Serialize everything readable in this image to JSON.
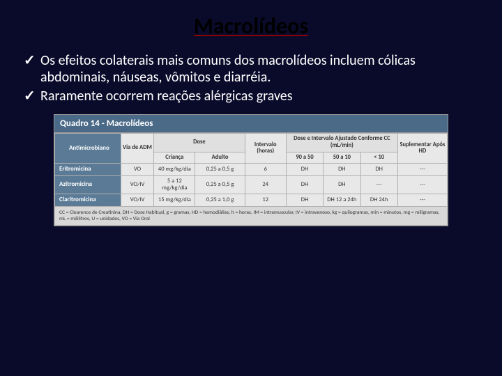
{
  "title": "Macrolídeos",
  "bullets": [
    "Os efeitos colaterais mais comuns dos macrolídeos incluem cólicas abdominais, náuseas, vômitos e diarréia.",
    "Raramente ocorrem reações alérgicas graves"
  ],
  "table": {
    "caption": "Quadro 14 - Macrolídeos",
    "headers": {
      "antimicrobiano": "Antimicrobiano",
      "via_adm": "Via de ADM",
      "dose": "Dose",
      "dose_crianca": "Criança",
      "dose_adulto": "Adulto",
      "intervalo": "Intervalo (horas)",
      "dose_ajust": "Dose e Intervalo Ajustado Conforme CC (mL/min)",
      "cc1": "90 a 50",
      "cc2": "50 a 10",
      "cc3": "< 10",
      "suplementar": "Suplementar Após HD"
    },
    "rows": [
      {
        "name": "Eritromicina",
        "via": "VO",
        "crianca": "40 mg/kg/dia",
        "adulto": "0,25 a 0,5 g",
        "intervalo": "6",
        "cc1": "DH",
        "cc2": "DH",
        "cc3": "DH",
        "hd": "---"
      },
      {
        "name": "Azitromicina",
        "via": "VO/IV",
        "crianca": "5 a 12 mg/kg/dia",
        "adulto": "0,25 a 0,5 g",
        "intervalo": "24",
        "cc1": "DH",
        "cc2": "DH",
        "cc3": "---",
        "hd": "---"
      },
      {
        "name": "Claritromicina",
        "via": "VO/IV",
        "crianca": "15 mg/kg/dia",
        "adulto": "0,25 a 1,0 g",
        "intervalo": "12",
        "cc1": "DH",
        "cc2": "DH 12 a 24h",
        "cc3": "DH 24h",
        "hd": "---"
      }
    ],
    "footer": "CC = Clearence de Creatinina, DH = Dose Habitual, g = gramas, HD = hemodiálise, h = horas, IM = intramuscular, IV = intravenoso, kg = quilogramas, min = minutos, mg = miligramas, mL = mililitros, U = unidades, VO = Via Oral",
    "colors": {
      "slide_bg": "#0a0a2a",
      "table_title_bg": "#4a6a88",
      "row_header_bg": "#5a7a96",
      "cell_bg": "#e8e8e8",
      "border": "#b0b0b0",
      "underline": "#8b0000"
    }
  }
}
